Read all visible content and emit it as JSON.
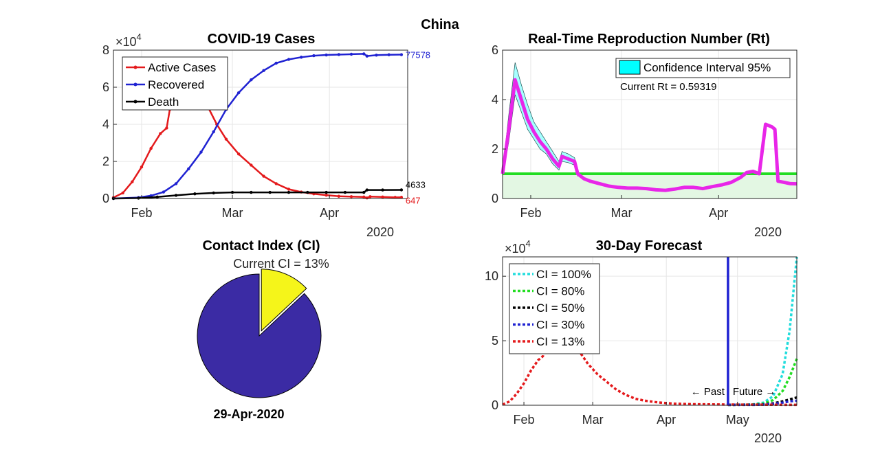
{
  "suptitle": "China",
  "chart_data": [
    {
      "type": "line",
      "title": "COVID-19 Cases",
      "y_multiplier": "×10",
      "y_multiplier_exp": "4",
      "xlim": [
        0,
        94
      ],
      "ylim": [
        0,
        8
      ],
      "yticks": [
        "0",
        "2",
        "4",
        "6",
        "8"
      ],
      "xticks": [
        {
          "label": "Feb",
          "day": 9
        },
        {
          "label": "Mar",
          "day": 38
        },
        {
          "label": "Apr",
          "day": 69
        }
      ],
      "year_label": "2020",
      "legend_position": "top-left",
      "grid": true,
      "series": [
        {
          "name": "Active Cases",
          "color": "#e41a1c",
          "end_label": "647",
          "points": [
            [
              0,
              0.05
            ],
            [
              3,
              0.3
            ],
            [
              6,
              0.9
            ],
            [
              9,
              1.7
            ],
            [
              12,
              2.7
            ],
            [
              15,
              3.5
            ],
            [
              17,
              3.8
            ],
            [
              18,
              4.8
            ],
            [
              21,
              5.5
            ],
            [
              24,
              5.8
            ],
            [
              27,
              5.6
            ],
            [
              30,
              5.0
            ],
            [
              33,
              4.0
            ],
            [
              36,
              3.2
            ],
            [
              40,
              2.4
            ],
            [
              44,
              1.8
            ],
            [
              48,
              1.2
            ],
            [
              52,
              0.8
            ],
            [
              56,
              0.5
            ],
            [
              60,
              0.35
            ],
            [
              64,
              0.25
            ],
            [
              68,
              0.18
            ],
            [
              72,
              0.12
            ],
            [
              76,
              0.1
            ],
            [
              80,
              0.08
            ],
            [
              81,
              0.03
            ],
            [
              82,
              0.1
            ],
            [
              86,
              0.08
            ],
            [
              90,
              0.06
            ],
            [
              92,
              0.0647
            ]
          ]
        },
        {
          "name": "Recovered",
          "color": "#1f22d2",
          "end_label": "77578",
          "points": [
            [
              0,
              0
            ],
            [
              8,
              0.05
            ],
            [
              12,
              0.15
            ],
            [
              16,
              0.35
            ],
            [
              20,
              0.8
            ],
            [
              24,
              1.6
            ],
            [
              28,
              2.5
            ],
            [
              32,
              3.6
            ],
            [
              36,
              4.8
            ],
            [
              40,
              5.7
            ],
            [
              44,
              6.4
            ],
            [
              48,
              6.9
            ],
            [
              52,
              7.3
            ],
            [
              56,
              7.5
            ],
            [
              60,
              7.62
            ],
            [
              64,
              7.7
            ],
            [
              68,
              7.74
            ],
            [
              72,
              7.76
            ],
            [
              76,
              7.78
            ],
            [
              80,
              7.8
            ],
            [
              81,
              7.68
            ],
            [
              84,
              7.73
            ],
            [
              88,
              7.75
            ],
            [
              92,
              7.7578
            ]
          ]
        },
        {
          "name": "Death",
          "color": "#000000",
          "end_label": "4633",
          "points": [
            [
              0,
              0
            ],
            [
              8,
              0.02
            ],
            [
              14,
              0.08
            ],
            [
              20,
              0.17
            ],
            [
              26,
              0.25
            ],
            [
              32,
              0.3
            ],
            [
              38,
              0.33
            ],
            [
              44,
              0.33
            ],
            [
              50,
              0.33
            ],
            [
              56,
              0.33
            ],
            [
              62,
              0.33
            ],
            [
              68,
              0.33
            ],
            [
              74,
              0.33
            ],
            [
              80,
              0.33
            ],
            [
              81,
              0.46
            ],
            [
              86,
              0.46
            ],
            [
              92,
              0.4633
            ]
          ]
        }
      ]
    },
    {
      "type": "line",
      "title": "Real-Time Reproduction Number (Rt)",
      "xlim": [
        0,
        94
      ],
      "ylim": [
        0,
        6
      ],
      "yticks": [
        "0",
        "2",
        "4",
        "6"
      ],
      "xticks": [
        {
          "label": "Feb",
          "day": 9
        },
        {
          "label": "Mar",
          "day": 38
        },
        {
          "label": "Apr",
          "day": 69
        }
      ],
      "year_label": "2020",
      "legend_position": "top-right",
      "legend_label": "Confidence Interval 95%",
      "annotation": "Current Rt = 0.59319",
      "threshold": 1,
      "grid": true,
      "rt_color": "#e826e8",
      "ci_fill": "#00ffff",
      "threshold_color": "#22dd22",
      "points": [
        [
          0,
          1.0
        ],
        [
          2,
          2.8
        ],
        [
          4,
          4.8
        ],
        [
          6,
          4.0
        ],
        [
          8,
          3.2
        ],
        [
          10,
          2.7
        ],
        [
          12,
          2.3
        ],
        [
          14,
          2.0
        ],
        [
          16,
          1.6
        ],
        [
          18,
          1.3
        ],
        [
          19,
          1.7
        ],
        [
          21,
          1.6
        ],
        [
          23,
          1.5
        ],
        [
          24,
          1.0
        ],
        [
          26,
          0.8
        ],
        [
          28,
          0.7
        ],
        [
          31,
          0.6
        ],
        [
          34,
          0.5
        ],
        [
          37,
          0.45
        ],
        [
          40,
          0.42
        ],
        [
          43,
          0.42
        ],
        [
          46,
          0.4
        ],
        [
          49,
          0.35
        ],
        [
          52,
          0.33
        ],
        [
          55,
          0.38
        ],
        [
          58,
          0.45
        ],
        [
          61,
          0.45
        ],
        [
          64,
          0.4
        ],
        [
          67,
          0.48
        ],
        [
          70,
          0.55
        ],
        [
          73,
          0.65
        ],
        [
          76,
          0.85
        ],
        [
          78,
          1.05
        ],
        [
          80,
          1.1
        ],
        [
          82,
          1.0
        ],
        [
          84,
          3.0
        ],
        [
          86,
          2.9
        ],
        [
          87,
          2.8
        ],
        [
          88,
          0.7
        ],
        [
          90,
          0.65
        ],
        [
          92,
          0.6
        ],
        [
          94,
          0.59319
        ]
      ],
      "ci_upper": [
        [
          0,
          1.1
        ],
        [
          2,
          3.4
        ],
        [
          4,
          5.5
        ],
        [
          6,
          4.6
        ],
        [
          8,
          3.8
        ],
        [
          10,
          3.1
        ],
        [
          12,
          2.7
        ],
        [
          14,
          2.3
        ],
        [
          16,
          1.9
        ],
        [
          18,
          1.5
        ],
        [
          19,
          1.9
        ],
        [
          21,
          1.8
        ],
        [
          23,
          1.65
        ],
        [
          24,
          1.1
        ]
      ],
      "ci_lower": [
        [
          0,
          0.9
        ],
        [
          2,
          2.3
        ],
        [
          4,
          4.2
        ],
        [
          6,
          3.5
        ],
        [
          8,
          2.8
        ],
        [
          10,
          2.4
        ],
        [
          12,
          2.0
        ],
        [
          14,
          1.8
        ],
        [
          16,
          1.4
        ],
        [
          18,
          1.15
        ],
        [
          19,
          1.5
        ],
        [
          21,
          1.45
        ],
        [
          23,
          1.35
        ],
        [
          24,
          0.9
        ]
      ]
    },
    {
      "type": "pie",
      "title": "Contact Index (CI)",
      "label": "Current CI = 13%",
      "xlabel": "29-Apr-2020",
      "slices": [
        {
          "value": 87,
          "color": "#3b2ba4"
        },
        {
          "value": 13,
          "color": "#f5f51a",
          "exploded": true
        }
      ]
    },
    {
      "type": "line",
      "title": "30-Day Forecast",
      "y_multiplier": "×10",
      "y_multiplier_exp": "4",
      "xlim": [
        0,
        124
      ],
      "ylim": [
        0,
        11.5
      ],
      "yticks": [
        "0",
        "5",
        "10"
      ],
      "xticks": [
        {
          "label": "Feb",
          "day": 9
        },
        {
          "label": "Mar",
          "day": 38
        },
        {
          "label": "Apr",
          "day": 69
        },
        {
          "label": "May",
          "day": 99
        }
      ],
      "year_label": "2020",
      "legend_position": "top-left",
      "divider_day": 95,
      "divider_color": "#1f22d2",
      "past_label": "← Past",
      "future_label": "Future →",
      "grid": true,
      "series": [
        {
          "name": "CI = 100%",
          "color": "#22dddd",
          "points": [
            [
              95,
              0.03
            ],
            [
              105,
              0.06
            ],
            [
              110,
              0.2
            ],
            [
              114,
              0.7
            ],
            [
              118,
              2.4
            ],
            [
              121,
              5.8
            ],
            [
              124,
              11.5
            ]
          ]
        },
        {
          "name": "CI = 80%",
          "color": "#22dd22",
          "points": [
            [
              95,
              0.03
            ],
            [
              105,
              0.05
            ],
            [
              110,
              0.12
            ],
            [
              114,
              0.4
            ],
            [
              118,
              1.1
            ],
            [
              121,
              2.2
            ],
            [
              124,
              3.6
            ]
          ]
        },
        {
          "name": "CI = 50%",
          "color": "#000000",
          "points": [
            [
              95,
              0.03
            ],
            [
              105,
              0.04
            ],
            [
              110,
              0.06
            ],
            [
              114,
              0.15
            ],
            [
              118,
              0.3
            ],
            [
              121,
              0.45
            ],
            [
              124,
              0.6
            ]
          ]
        },
        {
          "name": "CI = 30%",
          "color": "#1f22d2",
          "points": [
            [
              95,
              0.03
            ],
            [
              105,
              0.03
            ],
            [
              110,
              0.05
            ],
            [
              114,
              0.1
            ],
            [
              118,
              0.2
            ],
            [
              121,
              0.3
            ],
            [
              124,
              0.35
            ]
          ]
        },
        {
          "name": "CI = 13%",
          "color": "#e41a1c",
          "points": [
            [
              0,
              0.05
            ],
            [
              3,
              0.3
            ],
            [
              6,
              0.9
            ],
            [
              9,
              1.7
            ],
            [
              12,
              2.7
            ],
            [
              15,
              3.5
            ],
            [
              17,
              3.8
            ],
            [
              18,
              4.8
            ],
            [
              21,
              5.5
            ],
            [
              24,
              5.8
            ],
            [
              27,
              5.6
            ],
            [
              30,
              5.0
            ],
            [
              33,
              4.0
            ],
            [
              36,
              3.2
            ],
            [
              40,
              2.4
            ],
            [
              44,
              1.8
            ],
            [
              48,
              1.2
            ],
            [
              52,
              0.8
            ],
            [
              56,
              0.5
            ],
            [
              60,
              0.35
            ],
            [
              64,
              0.25
            ],
            [
              68,
              0.18
            ],
            [
              72,
              0.12
            ],
            [
              76,
              0.1
            ],
            [
              80,
              0.08
            ],
            [
              86,
              0.07
            ],
            [
              92,
              0.06
            ],
            [
              100,
              0.05
            ],
            [
              110,
              0.04
            ],
            [
              124,
              0.03
            ]
          ]
        }
      ]
    }
  ]
}
